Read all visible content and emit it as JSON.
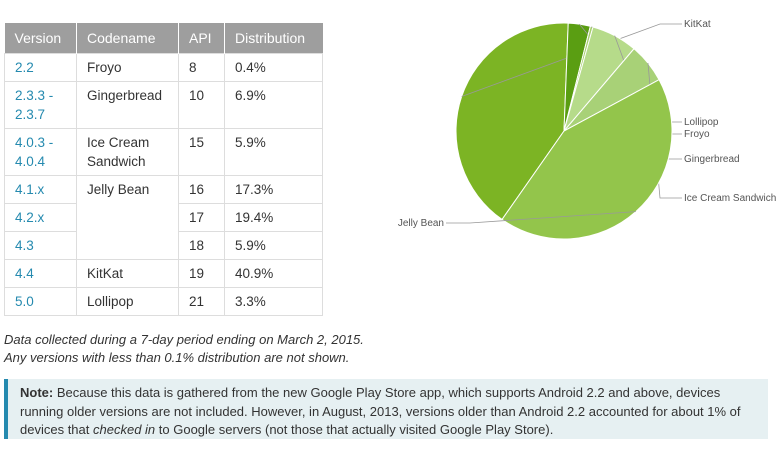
{
  "table": {
    "headers": [
      "Version",
      "Codename",
      "API",
      "Distribution"
    ],
    "rows": [
      {
        "version": "2.2",
        "codename": "Froyo",
        "api": "8",
        "dist": "0.4%"
      },
      {
        "version": "2.3.3 - 2.3.7",
        "codename": "Gingerbread",
        "api": "10",
        "dist": "6.9%"
      },
      {
        "version": "4.0.3 - 4.0.4",
        "codename": "Ice Cream Sandwich",
        "api": "15",
        "dist": "5.9%"
      },
      {
        "version": "4.1.x",
        "codename": "Jelly Bean",
        "api": "16",
        "dist": "17.3%"
      },
      {
        "version": "4.2.x",
        "codename": "",
        "api": "17",
        "dist": "19.4%"
      },
      {
        "version": "4.3",
        "codename": "",
        "api": "18",
        "dist": "5.9%"
      },
      {
        "version": "4.4",
        "codename": "KitKat",
        "api": "19",
        "dist": "40.9%"
      },
      {
        "version": "5.0",
        "codename": "Lollipop",
        "api": "21",
        "dist": "3.3%"
      }
    ]
  },
  "caption": {
    "line1": "Data collected during a 7-day period ending on March 2, 2015.",
    "line2": "Any versions with less than 0.1% distribution are not shown."
  },
  "note": {
    "label": "Note:",
    "text_before": " Because this data is gathered from the new Google Play Store app, which supports Android 2.2 and above, devices running older versions are not included. However, in August, 2013, versions older than Android 2.2 accounted for about 1% of devices that ",
    "emphasis": "checked in",
    "text_after": " to Google servers (not those that actually visited Google Play Store)."
  },
  "colors": {
    "kitkat": "#7cb424",
    "lollipop": "#5a9e12",
    "froyo": "#a5cf6b",
    "gingerbread": "#b6db8a",
    "ics": "#a8d177",
    "jellybean": "#93c54b",
    "accent": "#258aaf"
  },
  "chart_data": {
    "type": "pie",
    "slices": [
      {
        "label": "KitKat",
        "value": 40.9,
        "color": "#7cb424"
      },
      {
        "label": "Lollipop",
        "value": 3.3,
        "color": "#5a9e12"
      },
      {
        "label": "Froyo",
        "value": 0.4,
        "color": "#a5cf6b"
      },
      {
        "label": "Gingerbread",
        "value": 6.9,
        "color": "#b6db8a"
      },
      {
        "label": "Ice Cream Sandwich",
        "value": 5.9,
        "color": "#a8d177"
      },
      {
        "label": "Jelly Bean",
        "value": 42.6,
        "color": "#93c54b"
      }
    ]
  }
}
